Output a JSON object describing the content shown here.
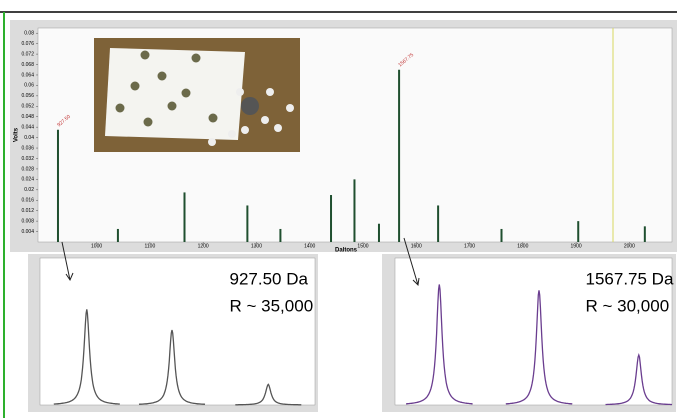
{
  "chart_data": [
    {
      "type": "stem",
      "xlabel": "Daltons",
      "ylabel": "Volts",
      "color": "#1f4f2f",
      "x": [
        927.5,
        1040,
        1165,
        1283,
        1345,
        1440,
        1484,
        1530,
        1567.75,
        1641,
        1760,
        1904,
        2029
      ],
      "values": [
        0.043,
        0.005,
        0.019,
        0.014,
        0.005,
        0.018,
        0.024,
        0.007,
        0.066,
        0.014,
        0.005,
        0.008,
        0.006
      ],
      "xlim": [
        890,
        2080
      ],
      "ylim": [
        0,
        0.082
      ],
      "xticks": [
        1000,
        1100,
        1200,
        1300,
        1400,
        1500,
        1600,
        1700,
        1800,
        1900,
        2000
      ],
      "yticks": [
        0.004,
        0.008,
        0.012,
        0.016,
        0.02,
        0.024,
        0.028,
        0.032,
        0.036,
        0.04,
        0.044,
        0.048,
        0.052,
        0.056,
        0.06,
        0.064,
        0.068,
        0.072,
        0.076,
        0.08
      ],
      "annotations": [
        {
          "x": 927.5,
          "text": "927.50"
        },
        {
          "x": 1567.75,
          "text": "1567.75"
        }
      ]
    },
    {
      "type": "peaks",
      "color": "#555555",
      "x": [
        17,
        48,
        83
      ],
      "values": [
        65,
        51,
        14
      ],
      "xlim": [
        0,
        100
      ],
      "ylim": [
        0,
        100
      ],
      "annotations": [
        "927.50 Da",
        "R ~ 35,000"
      ]
    },
    {
      "type": "peaks",
      "color": "#6a3d8f",
      "x": [
        16,
        52,
        88
      ],
      "values": [
        82,
        78,
        34
      ],
      "xlim": [
        0,
        100
      ],
      "ylim": [
        0,
        100
      ],
      "annotations": [
        "1567.75 Da",
        "R ~ 30,000"
      ]
    }
  ]
}
